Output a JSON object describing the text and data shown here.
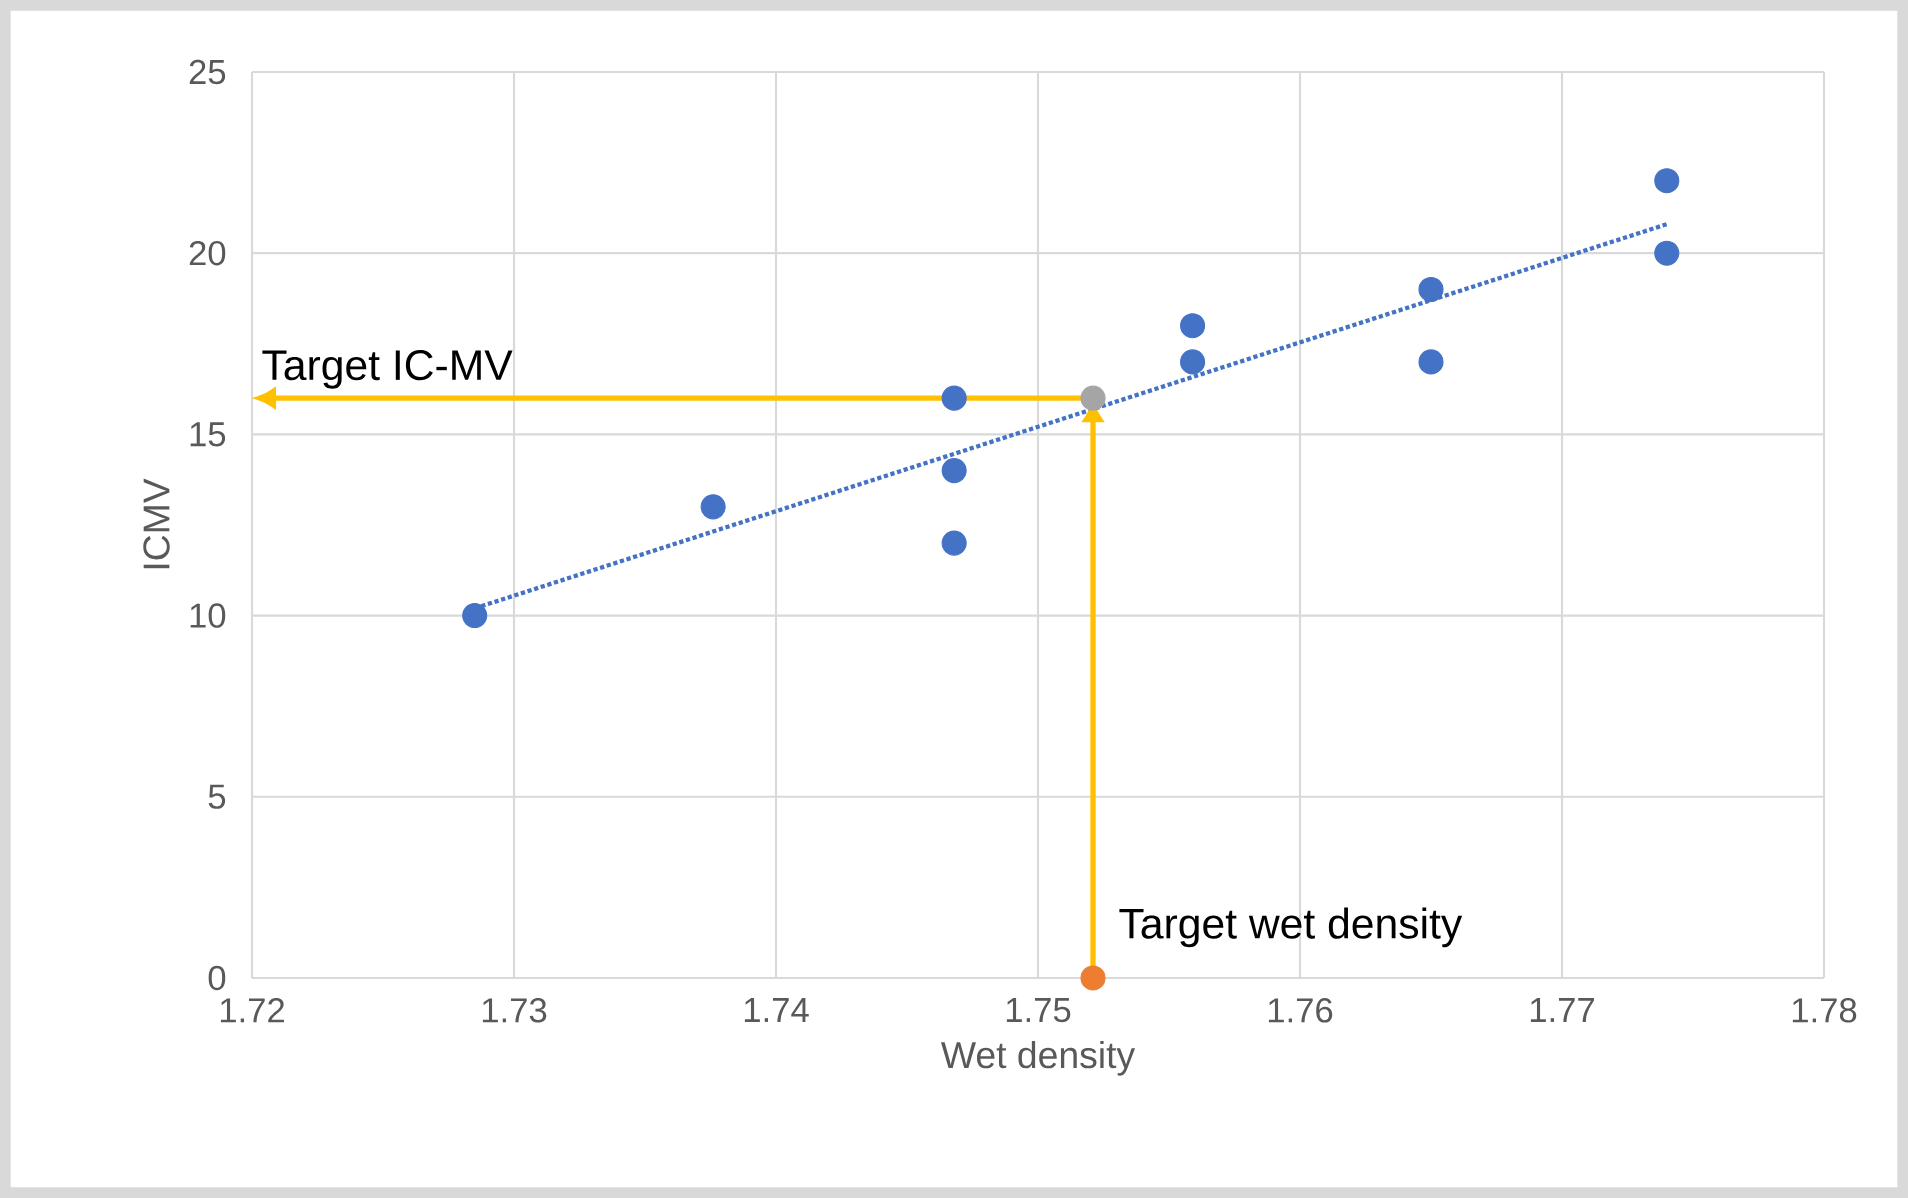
{
  "chart_data": {
    "type": "scatter",
    "xlabel": "Wet density",
    "ylabel": "ICMV",
    "xlim": [
      1.72,
      1.78
    ],
    "xticks": [
      1.72,
      1.73,
      1.74,
      1.75,
      1.76,
      1.77,
      1.78
    ],
    "ylim": [
      0,
      25
    ],
    "yticks": [
      0,
      5,
      10,
      15,
      20,
      25
    ],
    "grid": true,
    "series": [
      {
        "type": "line",
        "line_style": "dotted",
        "marker": "none",
        "color": "#4472c4",
        "x": [
          1.7285,
          1.774
        ],
        "values": [
          10.2,
          20.8
        ]
      },
      {
        "marker": "circle",
        "color": "#4472c4",
        "x": [
          1.7285,
          1.7376,
          1.7468,
          1.7468,
          1.7468,
          1.7559,
          1.7559,
          1.765,
          1.765,
          1.774,
          1.774
        ],
        "values": [
          10,
          13,
          16,
          14,
          12,
          18,
          17,
          19,
          17,
          22,
          20
        ]
      },
      {
        "marker": "circle",
        "color": "#a5a5a5",
        "x": [
          1.7521
        ],
        "values": [
          16
        ]
      },
      {
        "marker": "circle",
        "color": "#ed7d31",
        "x": [
          1.7521
        ],
        "values": [
          0
        ]
      }
    ],
    "annotations": [
      "Target IC-MV",
      {
        "text": "Target wet density",
        "x": 1.7521,
        "y": 0
      }
    ]
  }
}
